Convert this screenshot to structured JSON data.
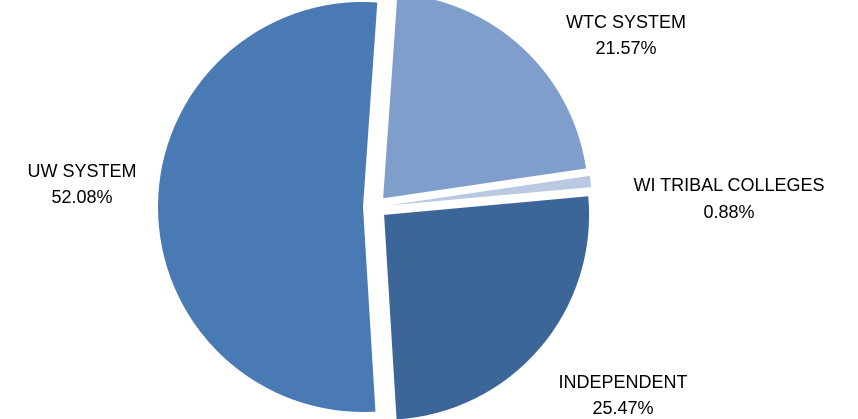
{
  "chart_data": {
    "type": "pie",
    "title": "",
    "exploded": true,
    "legend": "none",
    "slices": [
      {
        "name": "WTC SYSTEM",
        "value": 21.57,
        "label": "21.57%",
        "color": "#7f9ecb"
      },
      {
        "name": "WI TRIBAL COLLEGES",
        "value": 0.88,
        "label": "0.88%",
        "color": "#b9c9e1"
      },
      {
        "name": "INDEPENDENT",
        "value": 25.47,
        "label": "25.47%",
        "color": "#3d6698"
      },
      {
        "name": "UW SYSTEM",
        "value": 52.08,
        "label": "52.08%",
        "color": "#4a7ab3"
      }
    ]
  }
}
